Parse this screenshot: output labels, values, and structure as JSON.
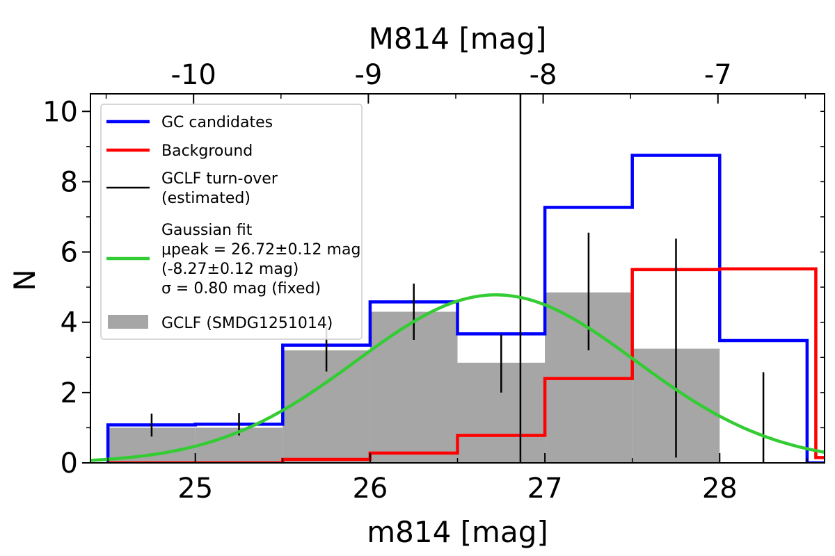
{
  "chart_data": {
    "type": "histogram",
    "xlabel": "m814 [mag]",
    "ylabel": "N",
    "top_xlabel": "M814 [mag]",
    "xlim": [
      24.4,
      28.6
    ],
    "ylim": [
      0,
      10.5
    ],
    "distance_modulus": 34.99,
    "x_ticks": [
      25,
      26,
      27,
      28
    ],
    "y_ticks": [
      0,
      2,
      4,
      6,
      8,
      10
    ],
    "top_ticks": [
      -10,
      -9,
      -8,
      -7
    ],
    "bin_edges": [
      24.5,
      25.0,
      25.5,
      26.0,
      26.5,
      27.0,
      27.5,
      28.0,
      28.5
    ],
    "gclf_bars": {
      "name": "GCLF (SMDG1251014)",
      "color": "#a6a6a6",
      "values": [
        1.0,
        1.0,
        3.2,
        4.3,
        2.85,
        4.85,
        3.25,
        0.0
      ]
    },
    "series": [
      {
        "name": "GC candidates",
        "color": "#0000ff",
        "values": [
          1.08,
          1.1,
          3.35,
          4.58,
          3.67,
          7.27,
          8.75,
          3.48
        ]
      },
      {
        "name": "Background",
        "color": "#ff0000",
        "values": [
          0.0,
          0.0,
          0.1,
          0.28,
          0.78,
          2.4,
          5.5,
          5.52
        ]
      }
    ],
    "tail_steps": {
      "blue_end": 28.5,
      "red_end": 28.55,
      "red_after": 0.15
    },
    "error_bars": {
      "x": [
        24.75,
        25.25,
        25.75,
        26.25,
        26.75,
        27.25,
        27.75,
        28.25
      ],
      "center": [
        1.08,
        1.1,
        3.2,
        4.3,
        2.85,
        4.85,
        3.25,
        0.75
      ],
      "low": [
        0.75,
        0.78,
        2.6,
        3.5,
        2.0,
        3.2,
        0.15,
        0.0
      ],
      "high": [
        1.4,
        1.42,
        3.85,
        5.1,
        3.65,
        6.55,
        6.38,
        2.58
      ]
    },
    "turnover": {
      "label": "GCLF turn-over (estimated)",
      "x": 26.86,
      "color": "#000000"
    },
    "gaussian_fit": {
      "color": "#33cc33",
      "mu": 26.72,
      "sigma": 0.8,
      "amplitude": 4.78
    },
    "legend": {
      "placement": "top-left",
      "entries": [
        {
          "lines": [
            "GC candidates"
          ],
          "kind": "line",
          "color": "#0000ff"
        },
        {
          "lines": [
            "Background"
          ],
          "kind": "line",
          "color": "#ff0000"
        },
        {
          "lines": [
            "GCLF turn-over",
            "(estimated)"
          ],
          "kind": "thin-line",
          "color": "#000000"
        },
        {
          "lines": [
            "Gaussian fit",
            "μpeak = 26.72±0.12 mag",
            "(-8.27±0.12 mag)",
            "σ = 0.80 mag (fixed)"
          ],
          "kind": "line",
          "color": "#33cc33"
        },
        {
          "lines": [
            "GCLF (SMDG1251014)"
          ],
          "kind": "patch",
          "color": "#a6a6a6"
        }
      ]
    }
  }
}
